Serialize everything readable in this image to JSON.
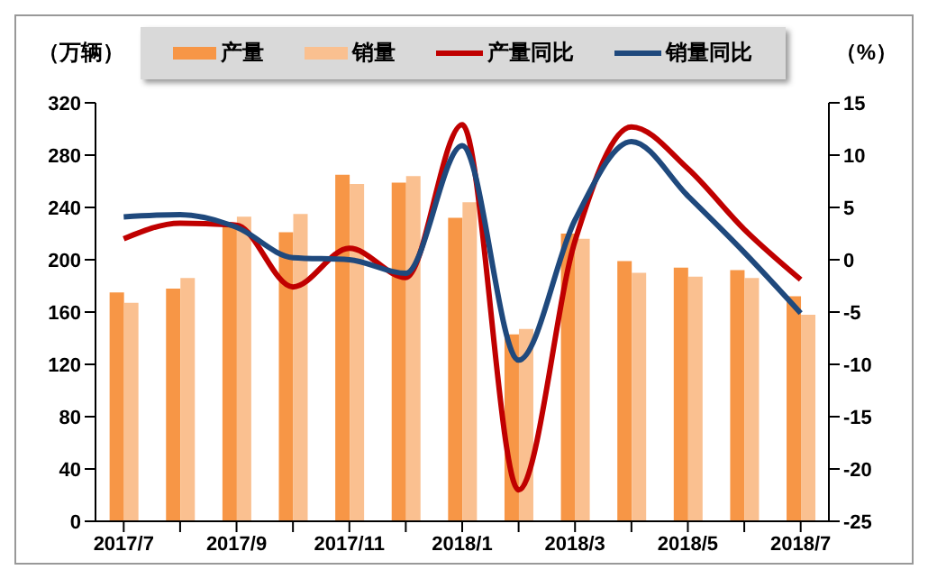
{
  "chart_data": {
    "type": "bar",
    "ylabel": "（万辆）",
    "y2label": "（%）",
    "categories": [
      "2017/7",
      null,
      "2017/9",
      null,
      "2017/11",
      null,
      "2018/1",
      null,
      "2018/3",
      null,
      "2018/5",
      null,
      "2018/7"
    ],
    "series": [
      {
        "name": "产量",
        "color": "#f79646",
        "values": [
          175,
          178,
          227,
          221,
          265,
          259,
          232,
          143,
          220,
          199,
          194,
          192,
          172
        ]
      },
      {
        "name": "销量",
        "color": "#fac090",
        "values": [
          167,
          186,
          233,
          235,
          258,
          264,
          244,
          147,
          216,
          190,
          187,
          186,
          158
        ]
      },
      {
        "name": "产量同比",
        "type": "line",
        "axis": "y2",
        "color": "#c00000",
        "values": [
          2.0,
          3.5,
          3.3,
          -2.6,
          1.1,
          -1.7,
          12.9,
          -22,
          1.8,
          12.7,
          8.7,
          2.9,
          -1.9
        ]
      },
      {
        "name": "销量同比",
        "type": "line",
        "axis": "y2",
        "color": "#1f497d",
        "values": [
          4.1,
          4.3,
          3.1,
          0.2,
          0,
          -1.3,
          10.9,
          -9.6,
          3.8,
          11.3,
          6.1,
          0.7,
          -5.1
        ]
      }
    ],
    "ylim": [
      0,
      320
    ],
    "yticks": [
      0,
      40,
      80,
      120,
      160,
      200,
      240,
      280,
      320
    ],
    "y2lim": [
      -25,
      15
    ],
    "y2ticks": [
      -25,
      -20,
      -15,
      -10,
      -5,
      0,
      5,
      10,
      15
    ],
    "grid": false,
    "legend": "top",
    "marker": "none"
  }
}
